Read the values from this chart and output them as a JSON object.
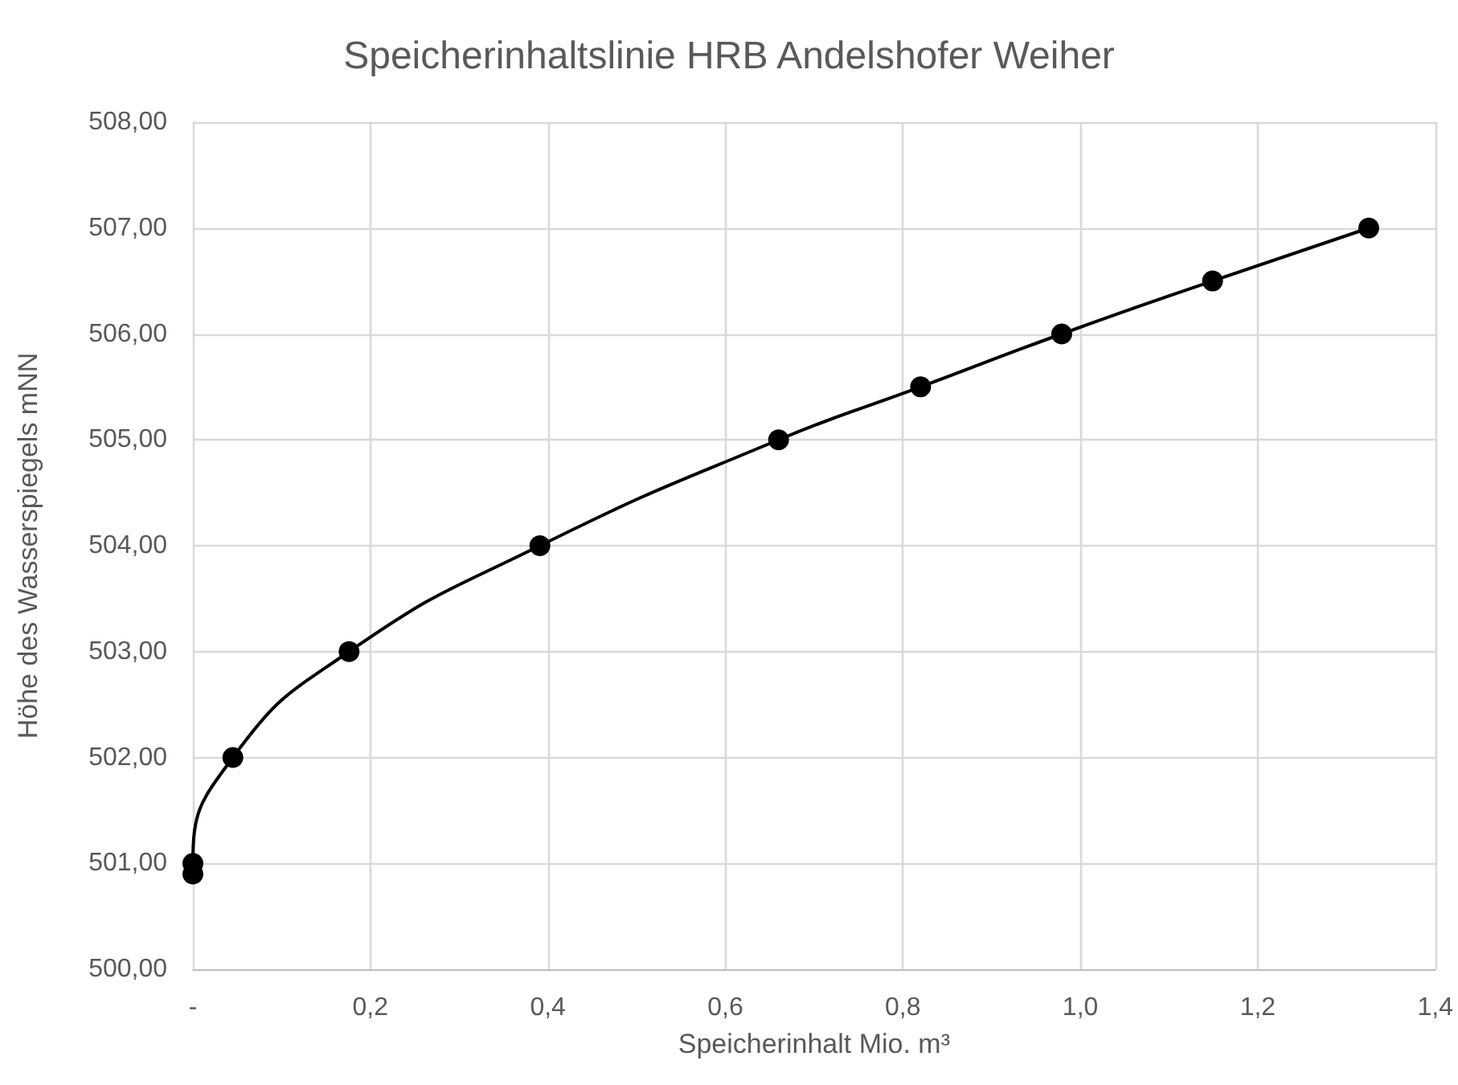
{
  "chart_data": {
    "type": "line",
    "title": "Speicherinhaltslinie HRB Andelshofer Weiher",
    "xlabel": "Speicherinhalt Mio. m³",
    "ylabel": "Höhe des Wasserspiegels mNN",
    "series": [
      {
        "color": "#000000",
        "x": [
          0,
          0,
          0.045,
          0.176,
          0.391,
          0.66,
          0.82,
          0.979,
          1.149,
          1.325
        ],
        "values": [
          500.9,
          501,
          502,
          503,
          504,
          505,
          505.5,
          506,
          506.5,
          507
        ]
      }
    ],
    "xlim": [
      0,
      1.4
    ],
    "xticks": [
      {
        "value": 0,
        "label": "-"
      },
      {
        "value": 0.2,
        "label": "0,2"
      },
      {
        "value": 0.4,
        "label": "0,4"
      },
      {
        "value": 0.6,
        "label": "0,6"
      },
      {
        "value": 0.8,
        "label": "0,8"
      },
      {
        "value": 1.0,
        "label": "1,0"
      },
      {
        "value": 1.2,
        "label": "1,2"
      },
      {
        "value": 1.4,
        "label": "1,4"
      }
    ],
    "ylim": [
      500,
      508
    ],
    "yticks": [
      {
        "value": 500,
        "label": "500,00"
      },
      {
        "value": 501,
        "label": "501,00"
      },
      {
        "value": 502,
        "label": "502,00"
      },
      {
        "value": 503,
        "label": "503,00"
      },
      {
        "value": 504,
        "label": "504,00"
      },
      {
        "value": 505,
        "label": "505,00"
      },
      {
        "value": 506,
        "label": "506,00"
      },
      {
        "value": 507,
        "label": "507,00"
      },
      {
        "value": 508,
        "label": "508,00"
      }
    ],
    "grid": true,
    "marker": "circle",
    "line_style": "solid"
  }
}
